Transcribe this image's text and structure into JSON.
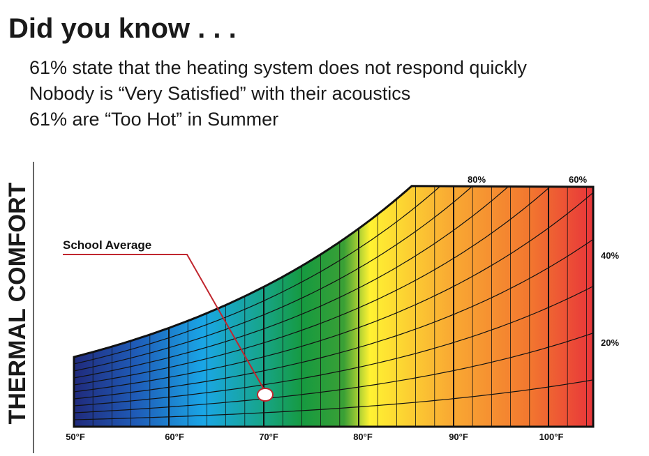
{
  "header": {
    "title": "Did you know . . ."
  },
  "facts": [
    "61% state that the heating system does not respond quickly",
    "Nobody is “Very Satisfied” with their acoustics",
    "61% are “Too Hot” in Summer"
  ],
  "side_label": "THERMAL COMFORT",
  "diagram": {
    "annotation": "School Average",
    "x_labels": [
      "50°F",
      "60°F",
      "70°F",
      "80°F",
      "90°F",
      "100°F"
    ],
    "rh_labels": [
      "80%",
      "60%",
      "40%",
      "20%"
    ]
  }
}
